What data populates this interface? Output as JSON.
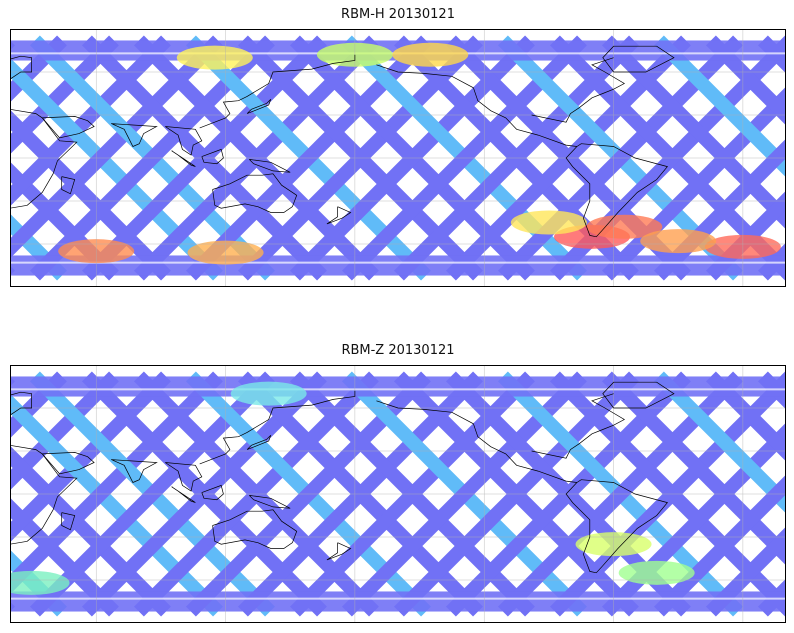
{
  "panels": [
    {
      "title": "RBM-H 20130121",
      "hotspots": [
        {
          "lon": 115,
          "lat": 70,
          "color": "#fff25a"
        },
        {
          "lon": 180,
          "lat": 72,
          "color": "#c8ff6a"
        },
        {
          "lon": 215,
          "lat": 72,
          "color": "#ffd84a"
        },
        {
          "lon": 0,
          "lat": -62,
          "color": "#ff6a5a"
        },
        {
          "lon": 60,
          "lat": -65,
          "color": "#ff8c50"
        },
        {
          "lon": 120,
          "lat": -66,
          "color": "#ffb050"
        },
        {
          "lon": 290,
          "lat": -55,
          "color": "#ff5a5a"
        },
        {
          "lon": 305,
          "lat": -48,
          "color": "#ff7a55"
        },
        {
          "lon": 330,
          "lat": -58,
          "color": "#ffa050"
        },
        {
          "lon": 270,
          "lat": -45,
          "color": "#ffe65a"
        }
      ]
    },
    {
      "title": "RBM-Z 20130121",
      "hotspots": [
        {
          "lon": 300,
          "lat": -35,
          "color": "#d8ff6a"
        },
        {
          "lon": 320,
          "lat": -55,
          "color": "#a0ff90"
        },
        {
          "lon": 30,
          "lat": -62,
          "color": "#7af0c0"
        },
        {
          "lon": 140,
          "lat": 70,
          "color": "#7ae8e8"
        }
      ]
    }
  ],
  "colors": {
    "track_base": "#6a6af5",
    "track_light": "#58b8f8",
    "coast": "#000000",
    "grid": "#b0b0b0"
  }
}
